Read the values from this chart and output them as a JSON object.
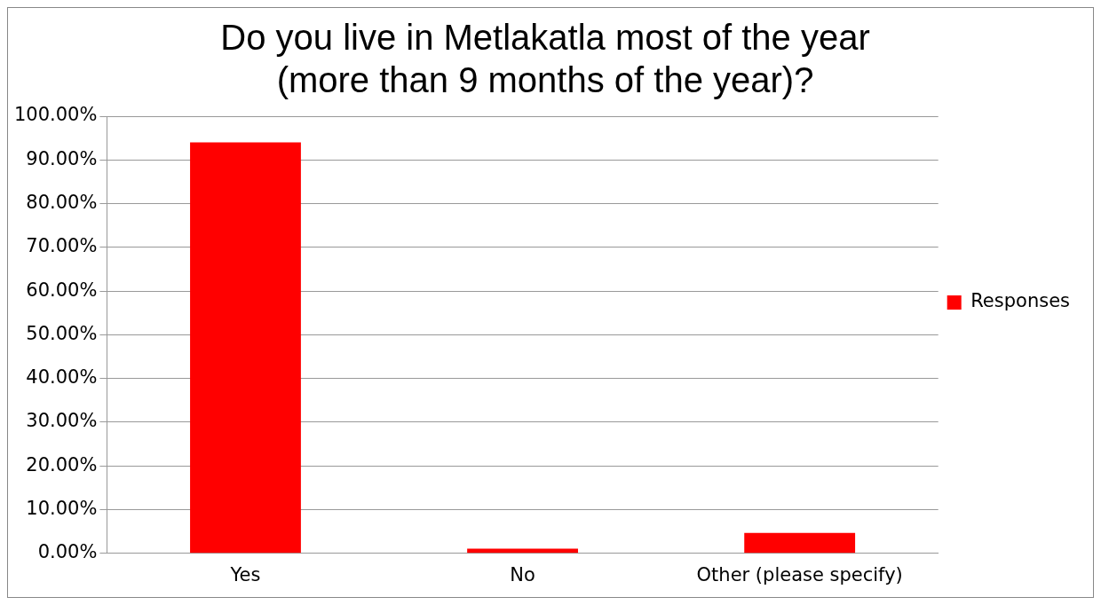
{
  "chart_data": {
    "type": "bar",
    "title": [
      "Do you live in Metlakatla most of the year",
      "(more than 9 months of the year)?"
    ],
    "categories": [
      "Yes",
      "No",
      "Other (please specify)"
    ],
    "series": [
      {
        "name": "Responses",
        "color": "#ff0000",
        "values": [
          94.0,
          1.1,
          4.7
        ]
      }
    ],
    "ylim": [
      0,
      100
    ],
    "yticks": [
      {
        "value": 0,
        "label": "0.00%"
      },
      {
        "value": 10,
        "label": "10.00%"
      },
      {
        "value": 20,
        "label": "20.00%"
      },
      {
        "value": 30,
        "label": "30.00%"
      },
      {
        "value": 40,
        "label": "40.00%"
      },
      {
        "value": 50,
        "label": "50.00%"
      },
      {
        "value": 60,
        "label": "60.00%"
      },
      {
        "value": 70,
        "label": "70.00%"
      },
      {
        "value": 80,
        "label": "80.00%"
      },
      {
        "value": 90,
        "label": "90.00%"
      },
      {
        "value": 100,
        "label": "100.00%"
      }
    ],
    "grid": "y",
    "legend": "right"
  }
}
